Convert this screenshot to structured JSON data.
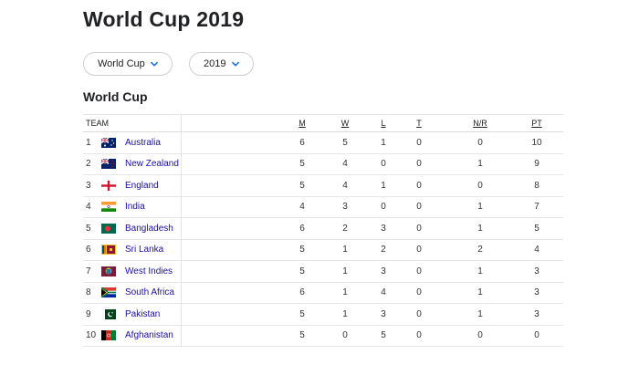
{
  "page": {
    "title": "World Cup 2019"
  },
  "filters": {
    "competition": "World Cup",
    "year": "2019"
  },
  "section": {
    "title": "World Cup"
  },
  "table": {
    "headers": {
      "team": "TEAM",
      "m": "M",
      "w": "W",
      "l": "L",
      "t": "T",
      "nr": "N/R",
      "pt": "PT"
    },
    "rows": [
      {
        "rank": "1",
        "team": "Australia",
        "flag": "australia-flag-icon",
        "m": "6",
        "w": "5",
        "l": "1",
        "t": "0",
        "nr": "0",
        "pt": "10"
      },
      {
        "rank": "2",
        "team": "New Zealand",
        "flag": "new-zealand-flag-icon",
        "m": "5",
        "w": "4",
        "l": "0",
        "t": "0",
        "nr": "1",
        "pt": "9"
      },
      {
        "rank": "3",
        "team": "England",
        "flag": "england-flag-icon",
        "m": "5",
        "w": "4",
        "l": "1",
        "t": "0",
        "nr": "0",
        "pt": "8"
      },
      {
        "rank": "4",
        "team": "India",
        "flag": "india-flag-icon",
        "m": "4",
        "w": "3",
        "l": "0",
        "t": "0",
        "nr": "1",
        "pt": "7"
      },
      {
        "rank": "5",
        "team": "Bangladesh",
        "flag": "bangladesh-flag-icon",
        "m": "6",
        "w": "2",
        "l": "3",
        "t": "0",
        "nr": "1",
        "pt": "5"
      },
      {
        "rank": "6",
        "team": "Sri Lanka",
        "flag": "sri-lanka-flag-icon",
        "m": "5",
        "w": "1",
        "l": "2",
        "t": "0",
        "nr": "2",
        "pt": "4"
      },
      {
        "rank": "7",
        "team": "West Indies",
        "flag": "west-indies-flag-icon",
        "m": "5",
        "w": "1",
        "l": "3",
        "t": "0",
        "nr": "1",
        "pt": "3"
      },
      {
        "rank": "8",
        "team": "South Africa",
        "flag": "south-africa-flag-icon",
        "m": "6",
        "w": "1",
        "l": "4",
        "t": "0",
        "nr": "1",
        "pt": "3"
      },
      {
        "rank": "9",
        "team": "Pakistan",
        "flag": "pakistan-flag-icon",
        "m": "5",
        "w": "1",
        "l": "3",
        "t": "0",
        "nr": "1",
        "pt": "3"
      },
      {
        "rank": "10",
        "team": "Afghanistan",
        "flag": "afghanistan-flag-icon",
        "m": "5",
        "w": "0",
        "l": "5",
        "t": "0",
        "nr": "0",
        "pt": "0"
      }
    ]
  },
  "colors": {
    "link": "#1a0dab",
    "chevron": "#1a73e8",
    "border": "#e6e6e6"
  }
}
